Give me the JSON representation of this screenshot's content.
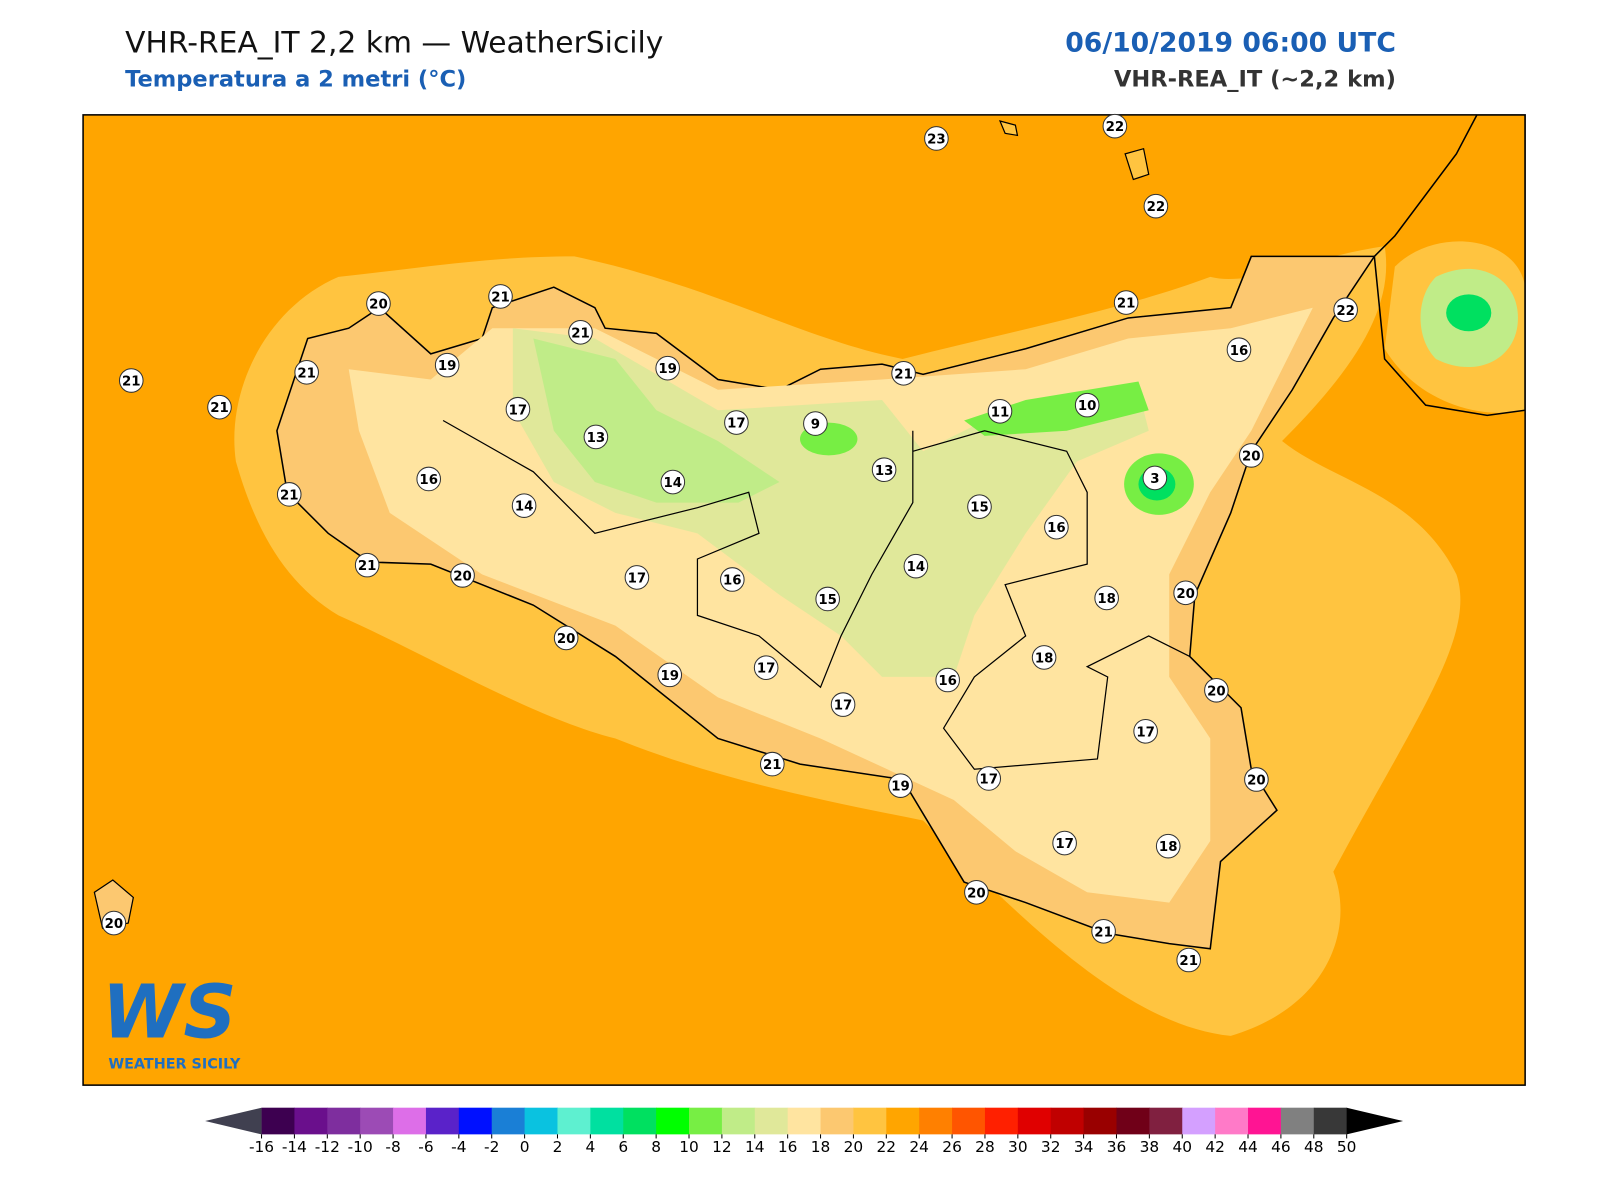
{
  "header": {
    "title": "VHR-REA_IT 2,2 km — WeatherSicily",
    "subtitle": "Temperatura a 2 metri (°C)",
    "date": "06/10/2019 06:00 UTC",
    "model": "VHR-REA_IT (~2,2 km)"
  },
  "map": {
    "stations": [
      23,
      22,
      22,
      20,
      21,
      21,
      19,
      19,
      21,
      21,
      21,
      17,
      17,
      9,
      13,
      13,
      16,
      14,
      14,
      21,
      21,
      22,
      16,
      21,
      11,
      10,
      3,
      20,
      15,
      16,
      14,
      21,
      20,
      17,
      16,
      15,
      18,
      20,
      18,
      20,
      19,
      17,
      17,
      16,
      20,
      17,
      21,
      19,
      17,
      20,
      17,
      18,
      20,
      21,
      21,
      20
    ]
  },
  "colorbar": {
    "ticks": [
      -16,
      -14,
      -12,
      -10,
      -8,
      -6,
      -4,
      -2,
      0,
      2,
      4,
      6,
      8,
      10,
      12,
      14,
      16,
      18,
      20,
      22,
      24,
      26,
      28,
      30,
      32,
      34,
      36,
      38,
      40,
      42,
      44,
      46,
      48,
      50
    ],
    "colors": [
      "#3d0050",
      "#6a0f8c",
      "#7e2e9e",
      "#9c4bb5",
      "#dd6ee8",
      "#5a22c9",
      "#0010ff",
      "#1a7fd6",
      "#0ac2e0",
      "#5ef0d0",
      "#00e0a0",
      "#00e060",
      "#00ff00",
      "#77ee44",
      "#c0ec88",
      "#e0e89a",
      "#ffe4a0",
      "#fcc870",
      "#ffc440",
      "#ffa500",
      "#ff8000",
      "#ff5500",
      "#ff2000",
      "#e00000",
      "#c00000",
      "#990000",
      "#700018",
      "#802040",
      "#d4a0ff",
      "#ff7ac8",
      "#ff1493",
      "#808080",
      "#383838"
    ],
    "under_color": "#404050",
    "over_color": "#000000"
  },
  "logo": {
    "mark": "WS",
    "text": "WEATHER SICILY"
  }
}
